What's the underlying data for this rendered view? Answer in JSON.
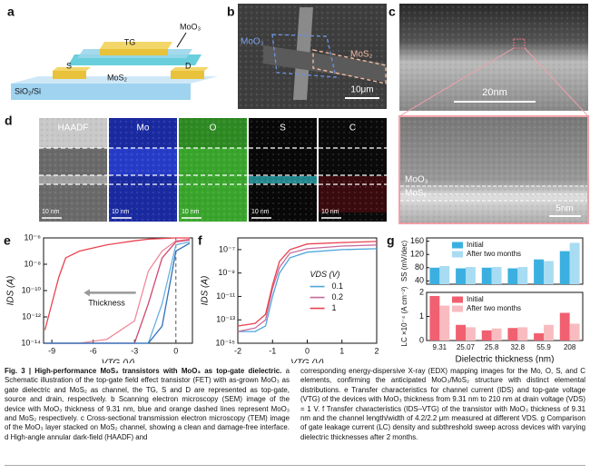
{
  "panel_a": {
    "panel": "a",
    "tg": "TG",
    "moo3": "MoO₃",
    "s": "S",
    "d": "D",
    "mos2": "MoS₂",
    "substrate": "SiO₂/Si"
  },
  "panel_b": {
    "panel": "b",
    "moo3": "MoO₃",
    "mos2": "MoS₂",
    "scale": "10μm"
  },
  "panel_c": {
    "panel": "c",
    "scale_top": "20nm",
    "moo3": "MoO₃",
    "mos2": "MoS₂",
    "scale_zoom": "5nm"
  },
  "panel_d": {
    "panel": "d",
    "tiles": [
      "HAADF",
      "Mo",
      "O",
      "S",
      "C"
    ],
    "scale": "10 nm"
  },
  "chart_data": [
    {
      "type": "line",
      "panel": "e",
      "xlabel": "VTG (V)",
      "ylabel": "IDS (A)",
      "log_y": true,
      "xlim": [
        -9.6,
        1.2
      ],
      "xticks": [
        -9,
        -6,
        -3,
        0
      ],
      "ylim": [
        1e-14,
        1e-06
      ],
      "yticks": [
        {
          "value": 1e-06,
          "label": "10⁻⁶"
        },
        {
          "value": 1e-08,
          "label": "10⁻⁸"
        },
        {
          "value": 1e-10,
          "label": "10⁻¹⁰"
        },
        {
          "value": 1e-12,
          "label": "10⁻¹²"
        },
        {
          "value": 1e-14,
          "label": "10⁻¹⁴"
        }
      ],
      "reference_line_x": 0,
      "annotation": "Thickness",
      "x": [
        -9.5,
        -9,
        -8.5,
        -8,
        -7,
        -5,
        -3,
        -2,
        -1,
        0,
        1
      ],
      "series": [
        {
          "color": "#e8424f",
          "values": [
            1e-13,
            1e-11,
            1e-09,
            3e-08,
            1e-07,
            3e-07,
            6e-07,
            8e-07,
            9e-07,
            1e-06,
            1e-06
          ]
        },
        {
          "color": "#f08a9a",
          "values": [
            1e-14,
            1e-14,
            1e-14,
            1e-14,
            1e-14,
            2e-14,
            5e-13,
            3e-09,
            1e-07,
            6e-07,
            8e-07
          ]
        },
        {
          "color": "#d04a70",
          "values": [
            1e-14,
            1e-14,
            1e-14,
            1e-14,
            1e-14,
            1e-14,
            1e-14,
            1e-11,
            3e-08,
            5e-07,
            7e-07
          ]
        },
        {
          "color": "#6ab0e0",
          "values": [
            1e-14,
            1e-14,
            1e-14,
            1e-14,
            1e-14,
            1e-14,
            1e-14,
            1e-14,
            1e-11,
            3e-07,
            5e-07
          ]
        },
        {
          "color": "#2f6fb8",
          "values": [
            1e-14,
            1e-14,
            1e-14,
            1e-14,
            1e-14,
            1e-14,
            1e-14,
            1e-14,
            2e-13,
            1e-07,
            4e-07
          ]
        }
      ]
    },
    {
      "type": "line",
      "panel": "f",
      "xlabel": "VTG (V)",
      "ylabel": "IDS (A)",
      "log_y": true,
      "xlim": [
        -2,
        2
      ],
      "xticks": [
        -2,
        -1,
        0,
        1,
        2
      ],
      "ylim": [
        1e-15,
        1e-06
      ],
      "yticks": [
        {
          "value": 1e-07,
          "label": "10⁻⁷"
        },
        {
          "value": 1e-09,
          "label": "10⁻⁹"
        },
        {
          "value": 1e-11,
          "label": "10⁻¹¹"
        },
        {
          "value": 1e-13,
          "label": "10⁻¹³"
        },
        {
          "value": 1e-15,
          "label": "10⁻¹⁵"
        }
      ],
      "legend_title": "VDS (V)",
      "x": [
        -2,
        -1.5,
        -1.2,
        -1,
        -0.8,
        -0.5,
        0,
        1,
        2
      ],
      "series": [
        {
          "name": "0.1",
          "color": "#4fa6dc",
          "values": [
            1e-14,
            1e-14,
            3e-14,
            1e-11,
            1e-09,
            2e-08,
            6e-08,
            1e-07,
            1.2e-07
          ]
        },
        {
          "name": "0.2",
          "color": "#c86a9a",
          "values": [
            1e-14,
            2e-14,
            1e-13,
            5e-11,
            3e-09,
            5e-08,
            1.2e-07,
            2e-07,
            2.5e-07
          ]
        },
        {
          "name": "1",
          "color": "#e8424f",
          "values": [
            3e-14,
            5e-14,
            3e-13,
            1e-10,
            1e-08,
            1e-07,
            3e-07,
            4e-07,
            5e-07
          ]
        }
      ]
    },
    {
      "type": "bar",
      "panel": "g",
      "xlabel": "Dielectric thickness (nm)",
      "categories": [
        "9.31",
        "25.07",
        "25.8",
        "32.8",
        "55.9",
        "208"
      ],
      "subplots": [
        {
          "ylabel": "SS (mV/dec)",
          "ylim": [
            30,
            170
          ],
          "yticks": [
            40,
            80,
            120,
            160
          ],
          "series": [
            {
              "name": "Initial",
              "color": "#3bb0e0",
              "values": [
                80,
                78,
                80,
                78,
                105,
                130
              ]
            },
            {
              "name": "After two months",
              "color": "#a8dcf2",
              "values": [
                85,
                82,
                82,
                82,
                100,
                155
              ]
            }
          ]
        },
        {
          "ylabel": "LC ×10⁻⁴ (A cm⁻²)",
          "ylim": [
            0,
            2
          ],
          "yticks": [
            0,
            1,
            2
          ],
          "series": [
            {
              "name": "Initial",
              "color": "#f06070",
              "values": [
                1.85,
                0.65,
                0.42,
                0.52,
                0.3,
                1.15
              ]
            },
            {
              "name": "After two months",
              "color": "#f8bcc0",
              "values": [
                1.45,
                0.55,
                0.5,
                0.55,
                0.65,
                0.7
              ]
            }
          ]
        }
      ]
    }
  ],
  "caption": {
    "title": "Fig. 3 | High-performance MoS₂ transistors with MoO₃ as top-gate dielectric.",
    "left": "a Schematic illustration of the top-gate field effect transistor (FET) with as-grown MoO₃ as gate dielectric and MoS₂ as channel, the TG, S and D are represented as top-gate, source and drain, respectively. b Scanning electron microscopy (SEM) image of the device with MoO₃ thickness of 9.31 nm, blue and orange dashed lines represent MoO₃ and MoS₂ respectively. c Cross-sectional transmission electron microscopy (TEM) image of the MoO₃ layer stacked on MoS₂ channel, showing a clean and damage-free interface. d High-angle annular dark-field (HAADF) and",
    "right": "corresponding energy-dispersive X-ray (EDX) mapping images for the Mo, O, S, and C elements, confirming the anticipated MoO₃/MoS₂ structure with distinct elemental distributions. e Transfer characteristics for channel current (IDS) and top-gate voltage (VTG) of the devices with MoO₃ thickness from 9.31 nm to 210 nm at drain voltage (VDS) = 1 V. f Transfer characteristics (IDS–VTG) of the transistor with MoO₃ thickness of 9.31 nm and the channel length/width of 4.2/2.2 μm measured at different VDS. g Comparison of gate leakage current (LC) density and subthreshold sweep across devices with varying dielectric thicknesses after 2 months."
  }
}
